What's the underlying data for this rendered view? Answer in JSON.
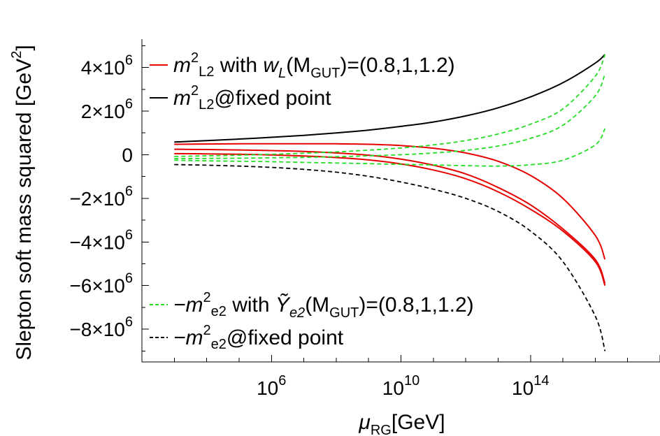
{
  "chart_data": {
    "type": "line",
    "x_scale": "log10",
    "x_tick_labels": [
      {
        "base": "10",
        "exp": "6",
        "value": 1000000.0
      },
      {
        "base": "10",
        "exp": "10",
        "value": 10000000000.0
      },
      {
        "base": "10",
        "exp": "14",
        "value": 100000000000000.0
      }
    ],
    "y_tick_labels": [
      {
        "label": "4×10",
        "exp": "6",
        "value": 4000000
      },
      {
        "label": "2×10",
        "exp": "6",
        "value": 2000000
      },
      {
        "label": "0",
        "exp": "",
        "value": 0
      },
      {
        "label": "−2×10",
        "exp": "6",
        "value": -2000000
      },
      {
        "label": "−4×10",
        "exp": "6",
        "value": -4000000
      },
      {
        "label": "−6×10",
        "exp": "6",
        "value": -6000000
      },
      {
        "label": "−8×10",
        "exp": "6",
        "value": -8000000
      }
    ],
    "xlim": [
      100.0,
      1e+18
    ],
    "ylim": [
      -9500000,
      5300000
    ],
    "ylabel": {
      "main": "Slepton soft mass squared [GeV",
      "sup": "2",
      "end": "]"
    },
    "xlabel": {
      "main": "μ",
      "sub": "RG",
      "end": "[GeV]"
    },
    "legend_top": [
      {
        "color": "#e60000",
        "dash": "solid",
        "parts": [
          "m",
          "2",
          "L2",
          " with ",
          "w",
          "L",
          "(M",
          "GUT",
          ")=(0.8,1,1.2)"
        ]
      },
      {
        "color": "#000000",
        "dash": "solid",
        "parts": [
          "m",
          "2",
          "L2",
          "@fixed point"
        ]
      }
    ],
    "legend_bottom": [
      {
        "color": "#22dd22",
        "dash": "dashed",
        "parts": [
          "−m",
          "2",
          "e2",
          " with ",
          "Ỹ",
          "e2",
          "(M",
          "GUT",
          ")=(0.8,1,1.2)"
        ]
      },
      {
        "color": "#000000",
        "dash": "dashed",
        "parts": [
          "−m",
          "2",
          "e2",
          "@fixed point"
        ]
      }
    ],
    "series": [
      {
        "group": "m2_L2",
        "color": "#e60000",
        "dash": "solid",
        "x": [
          3,
          4,
          5,
          6,
          7,
          8,
          9,
          10,
          11,
          12,
          13,
          14,
          15,
          16,
          16.3
        ],
        "y": [
          250000,
          240000,
          220000,
          190000,
          150000,
          80000,
          -20000,
          -200000,
          -480000,
          -880000,
          -1500000,
          -2300000,
          -3400000,
          -4800000,
          -5900000
        ]
      },
      {
        "group": "m2_L2",
        "color": "#e60000",
        "dash": "solid",
        "x": [
          3,
          4,
          5,
          6,
          7,
          8,
          9,
          10,
          11,
          12,
          13,
          14,
          15,
          16,
          16.3
        ],
        "y": [
          50000,
          40000,
          20000,
          -10000,
          -60000,
          -130000,
          -240000,
          -420000,
          -700000,
          -1100000,
          -1700000,
          -2500000,
          -3500000,
          -4900000,
          -6000000
        ]
      },
      {
        "group": "m2_L2",
        "color": "#e60000",
        "dash": "solid",
        "x": [
          3,
          4,
          5,
          6,
          7,
          8,
          9,
          10,
          11,
          12,
          13,
          14,
          15,
          16,
          16.3
        ],
        "y": [
          480000,
          490000,
          500000,
          505000,
          505000,
          500000,
          480000,
          420000,
          300000,
          80000,
          -300000,
          -950000,
          -2000000,
          -3700000,
          -4800000
        ]
      },
      {
        "group": "m2_L2_fixed",
        "color": "#000000",
        "dash": "solid",
        "x": [
          3,
          4,
          5,
          6,
          7,
          8,
          9,
          10,
          11,
          12,
          13,
          14,
          15,
          16,
          16.3
        ],
        "y": [
          580000,
          650000,
          720000,
          800000,
          890000,
          1000000,
          1130000,
          1300000,
          1500000,
          1780000,
          2150000,
          2650000,
          3300000,
          4200000,
          4600000
        ]
      },
      {
        "group": "m2_e2",
        "color": "#22dd22",
        "dash": "dashed",
        "x": [
          3,
          4,
          5,
          6,
          7,
          8,
          9,
          10,
          11,
          12,
          13,
          14,
          15,
          16,
          16.3
        ],
        "y": [
          -250000,
          -280000,
          -300000,
          -320000,
          -350000,
          -380000,
          -410000,
          -440000,
          -470000,
          -500000,
          -520000,
          -460000,
          -250000,
          450000,
          1200000
        ]
      },
      {
        "group": "m2_e2",
        "color": "#22dd22",
        "dash": "dashed",
        "x": [
          3,
          4,
          5,
          6,
          7,
          8,
          9,
          10,
          11,
          12,
          13,
          14,
          15,
          16,
          16.3
        ],
        "y": [
          -180000,
          -170000,
          -160000,
          -140000,
          -120000,
          -90000,
          -50000,
          0,
          80000,
          200000,
          400000,
          750000,
          1350000,
          2700000,
          3700000
        ]
      },
      {
        "group": "m2_e2",
        "color": "#22dd22",
        "dash": "dashed",
        "x": [
          3,
          4,
          5,
          6,
          7,
          8,
          9,
          10,
          11,
          12,
          13,
          14,
          15,
          16,
          16.3
        ],
        "y": [
          -80000,
          -50000,
          -20000,
          20000,
          70000,
          130000,
          210000,
          310000,
          450000,
          650000,
          950000,
          1400000,
          2100000,
          3600000,
          4600000
        ]
      },
      {
        "group": "m2_e2_fixed",
        "color": "#000000",
        "dash": "dashed",
        "x": [
          3,
          4,
          5,
          6,
          7,
          8,
          9,
          10,
          11,
          12,
          13,
          14,
          15,
          16,
          16.3
        ],
        "y": [
          -450000,
          -480000,
          -520000,
          -580000,
          -670000,
          -800000,
          -990000,
          -1250000,
          -1580000,
          -2000000,
          -2600000,
          -3500000,
          -4900000,
          -7400000,
          -9000000
        ]
      }
    ]
  }
}
